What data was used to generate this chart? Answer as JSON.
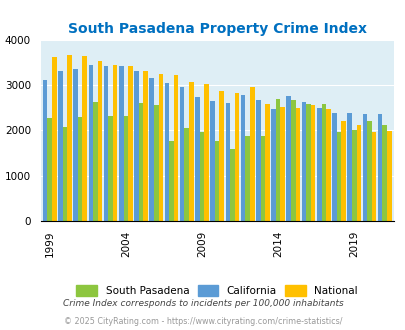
{
  "title": "South Pasadena Property Crime Index",
  "years": [
    1999,
    2000,
    2001,
    2002,
    2003,
    2004,
    2005,
    2006,
    2007,
    2008,
    2009,
    2010,
    2011,
    2012,
    2013,
    2014,
    2015,
    2016,
    2017,
    2018,
    2019,
    2020,
    2021
  ],
  "south_pasadena": [
    2280,
    2080,
    2300,
    2620,
    2310,
    2320,
    2610,
    2550,
    1760,
    2050,
    1960,
    1760,
    1600,
    1870,
    1870,
    2700,
    2660,
    2580,
    2570,
    1960,
    2010,
    2200,
    2110
  ],
  "california": [
    3100,
    3310,
    3350,
    3440,
    3420,
    3410,
    3310,
    3160,
    3040,
    2960,
    2740,
    2640,
    2600,
    2770,
    2670,
    2470,
    2760,
    2620,
    2500,
    2390,
    2390,
    2370,
    2370
  ],
  "national": [
    3610,
    3660,
    3640,
    3520,
    3440,
    3420,
    3310,
    3250,
    3210,
    3060,
    3030,
    2860,
    2830,
    2960,
    2590,
    2510,
    2490,
    2560,
    2460,
    2210,
    2110,
    1960,
    1990
  ],
  "sp_color": "#8dc63f",
  "ca_color": "#5b9bd5",
  "na_color": "#ffc000",
  "bg_color": "#deeef5",
  "title_color": "#0070c0",
  "ylim": [
    0,
    4000
  ],
  "subtitle": "Crime Index corresponds to incidents per 100,000 inhabitants",
  "footer": "© 2025 CityRating.com - https://www.cityrating.com/crime-statistics/",
  "legend_labels": [
    "South Pasadena",
    "California",
    "National"
  ]
}
